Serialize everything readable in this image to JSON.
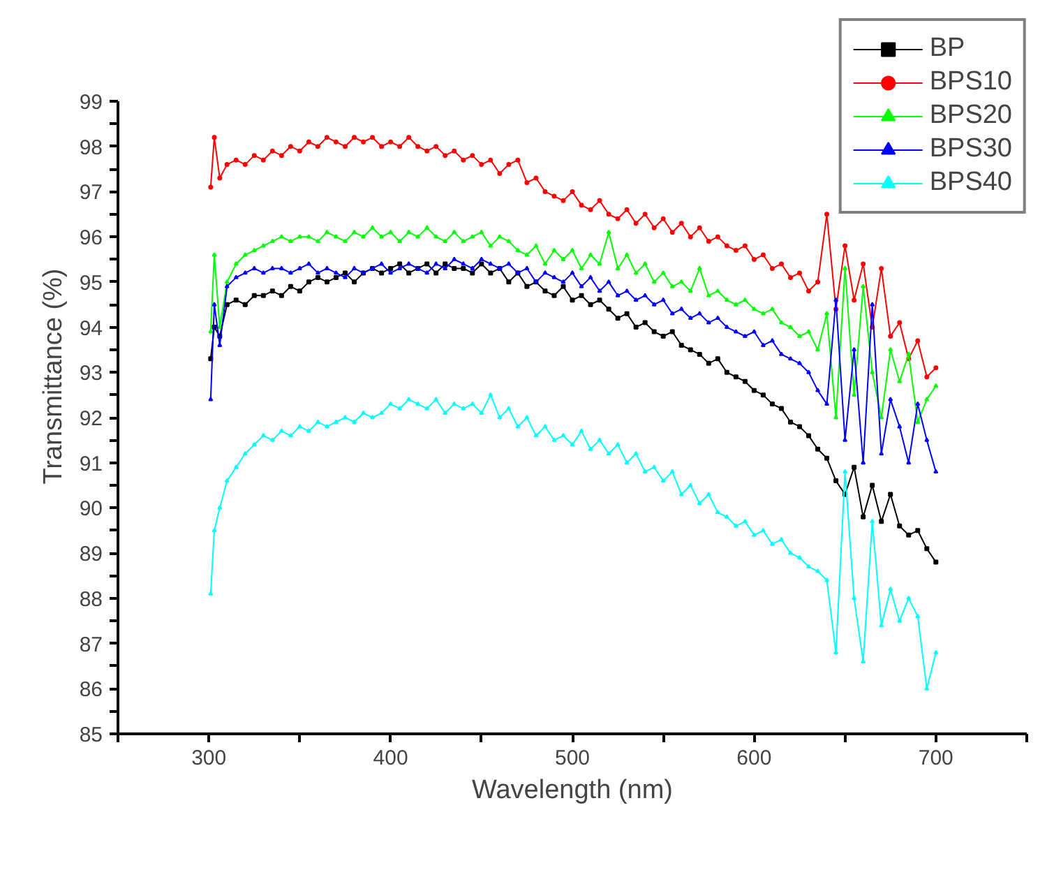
{
  "chart_data": {
    "type": "line",
    "xlabel": "Wavelength (nm)",
    "ylabel": "Transmittance (%)",
    "xlim": [
      250,
      750
    ],
    "ylim": [
      85,
      99
    ],
    "xticks": [
      {
        "value": 250,
        "label": null
      },
      300,
      {
        "value": 350,
        "label": null
      },
      400,
      {
        "value": 450,
        "label": null
      },
      500,
      {
        "value": 550,
        "label": null
      },
      600,
      {
        "value": 650,
        "label": null
      },
      700,
      {
        "value": 750,
        "label": null
      }
    ],
    "yticks": [
      85,
      {
        "value": 85.5,
        "label": null
      },
      86,
      {
        "value": 86.5,
        "label": null
      },
      87,
      {
        "value": 87.5,
        "label": null
      },
      88,
      {
        "value": 88.5,
        "label": null
      },
      89,
      {
        "value": 89.5,
        "label": null
      },
      90,
      {
        "value": 90.5,
        "label": null
      },
      91,
      {
        "value": 91.5,
        "label": null
      },
      92,
      {
        "value": 92.5,
        "label": null
      },
      93,
      {
        "value": 93.5,
        "label": null
      },
      94,
      {
        "value": 94.5,
        "label": null
      },
      95,
      {
        "value": 95.5,
        "label": null
      },
      96,
      {
        "value": 96.5,
        "label": null
      },
      97,
      {
        "value": 97.5,
        "label": null
      },
      98,
      {
        "value": 98.5,
        "label": null
      },
      99
    ],
    "legend": "top right",
    "line_style": "solid",
    "x": [
      301,
      303,
      306,
      310,
      315,
      320,
      325,
      330,
      335,
      340,
      345,
      350,
      355,
      360,
      365,
      370,
      375,
      380,
      385,
      390,
      395,
      400,
      405,
      410,
      415,
      420,
      425,
      430,
      435,
      440,
      445,
      450,
      455,
      460,
      465,
      470,
      475,
      480,
      485,
      490,
      495,
      500,
      505,
      510,
      515,
      520,
      525,
      530,
      535,
      540,
      545,
      550,
      555,
      560,
      565,
      570,
      575,
      580,
      585,
      590,
      595,
      600,
      605,
      610,
      615,
      620,
      625,
      630,
      635,
      640,
      645,
      650,
      655,
      660,
      665,
      670,
      675,
      680,
      685,
      690,
      695,
      700
    ],
    "series": [
      {
        "name": "BP",
        "color": "#000000",
        "marker": "square",
        "values": [
          93.3,
          94.0,
          93.8,
          94.5,
          94.6,
          94.5,
          94.7,
          94.7,
          94.8,
          94.7,
          94.9,
          94.8,
          95.0,
          95.1,
          95.0,
          95.1,
          95.2,
          95.0,
          95.2,
          95.3,
          95.2,
          95.3,
          95.4,
          95.2,
          95.3,
          95.4,
          95.2,
          95.4,
          95.3,
          95.3,
          95.2,
          95.4,
          95.2,
          95.3,
          95.0,
          95.2,
          94.9,
          95.0,
          94.8,
          94.7,
          94.9,
          94.6,
          94.7,
          94.5,
          94.6,
          94.4,
          94.2,
          94.3,
          94.0,
          94.1,
          93.9,
          93.8,
          93.9,
          93.6,
          93.5,
          93.4,
          93.2,
          93.3,
          93.0,
          92.9,
          92.8,
          92.6,
          92.5,
          92.3,
          92.2,
          91.9,
          91.8,
          91.6,
          91.3,
          91.1,
          90.6,
          90.3,
          90.9,
          89.8,
          90.5,
          89.7,
          90.3,
          89.6,
          89.4,
          89.5,
          89.1,
          88.8
        ]
      },
      {
        "name": "BPS10",
        "color": "#ff0000",
        "marker": "circle",
        "values": [
          97.1,
          98.2,
          97.3,
          97.6,
          97.7,
          97.6,
          97.8,
          97.7,
          97.9,
          97.8,
          98.0,
          97.9,
          98.1,
          98.0,
          98.2,
          98.1,
          98.0,
          98.2,
          98.1,
          98.2,
          98.0,
          98.1,
          98.0,
          98.2,
          98.0,
          97.9,
          98.0,
          97.8,
          97.9,
          97.7,
          97.8,
          97.6,
          97.7,
          97.4,
          97.6,
          97.7,
          97.2,
          97.3,
          97.0,
          96.9,
          96.8,
          97.0,
          96.7,
          96.6,
          96.8,
          96.5,
          96.4,
          96.6,
          96.3,
          96.5,
          96.2,
          96.4,
          96.1,
          96.3,
          96.0,
          96.2,
          95.9,
          96.0,
          95.8,
          95.7,
          95.8,
          95.5,
          95.6,
          95.3,
          95.4,
          95.1,
          95.2,
          94.8,
          95.0,
          96.5,
          94.4,
          95.8,
          94.6,
          95.4,
          94.0,
          95.3,
          93.8,
          94.1,
          93.3,
          93.7,
          92.9,
          93.1
        ]
      },
      {
        "name": "BPS20",
        "color": "#00ff00",
        "marker": "triangle",
        "values": [
          93.9,
          95.6,
          94.0,
          95.0,
          95.4,
          95.6,
          95.7,
          95.8,
          95.9,
          96.0,
          95.9,
          96.0,
          96.0,
          95.9,
          96.1,
          96.0,
          95.9,
          96.1,
          96.0,
          96.2,
          96.0,
          96.1,
          95.9,
          96.1,
          96.0,
          96.2,
          96.0,
          95.9,
          96.1,
          95.9,
          96.0,
          96.1,
          95.8,
          96.0,
          95.9,
          95.7,
          95.6,
          95.8,
          95.4,
          95.7,
          95.5,
          95.7,
          95.3,
          95.6,
          95.4,
          96.1,
          95.3,
          95.6,
          95.2,
          95.4,
          95.0,
          95.2,
          94.9,
          95.0,
          94.8,
          95.3,
          94.7,
          94.8,
          94.6,
          94.5,
          94.6,
          94.4,
          94.3,
          94.4,
          94.1,
          94.0,
          93.8,
          93.9,
          93.5,
          94.3,
          92.0,
          95.3,
          92.5,
          94.9,
          93.0,
          92.0,
          93.5,
          92.8,
          93.4,
          91.9,
          92.4,
          92.7
        ]
      },
      {
        "name": "BPS30",
        "color": "#0000ff",
        "marker": "triangle",
        "values": [
          92.4,
          94.5,
          93.6,
          94.9,
          95.1,
          95.2,
          95.3,
          95.2,
          95.3,
          95.3,
          95.2,
          95.3,
          95.4,
          95.2,
          95.3,
          95.2,
          95.1,
          95.3,
          95.2,
          95.3,
          95.4,
          95.2,
          95.3,
          95.4,
          95.3,
          95.2,
          95.4,
          95.3,
          95.5,
          95.4,
          95.3,
          95.5,
          95.4,
          95.3,
          95.4,
          95.2,
          95.3,
          95.0,
          95.2,
          95.1,
          95.0,
          95.2,
          94.9,
          95.1,
          94.8,
          95.0,
          94.7,
          94.8,
          94.6,
          94.7,
          94.5,
          94.6,
          94.3,
          94.4,
          94.2,
          94.3,
          94.1,
          94.2,
          94.0,
          93.9,
          93.8,
          93.9,
          93.6,
          93.7,
          93.4,
          93.3,
          93.2,
          93.0,
          92.6,
          92.3,
          94.6,
          91.5,
          93.5,
          91.0,
          94.5,
          91.2,
          92.4,
          91.8,
          91.0,
          92.3,
          91.5,
          90.8
        ]
      },
      {
        "name": "BPS40",
        "color": "#00ffff",
        "marker": "triangle",
        "values": [
          88.1,
          89.5,
          90.0,
          90.6,
          90.9,
          91.2,
          91.4,
          91.6,
          91.5,
          91.7,
          91.6,
          91.8,
          91.7,
          91.9,
          91.8,
          91.9,
          92.0,
          91.9,
          92.1,
          92.0,
          92.1,
          92.3,
          92.2,
          92.4,
          92.3,
          92.2,
          92.4,
          92.1,
          92.3,
          92.2,
          92.3,
          92.1,
          92.5,
          92.0,
          92.2,
          91.8,
          92.0,
          91.6,
          91.8,
          91.5,
          91.6,
          91.4,
          91.7,
          91.3,
          91.5,
          91.2,
          91.4,
          91.0,
          91.2,
          90.8,
          90.9,
          90.6,
          90.8,
          90.3,
          90.5,
          90.1,
          90.3,
          89.9,
          89.8,
          89.6,
          89.7,
          89.4,
          89.5,
          89.2,
          89.3,
          89.0,
          88.9,
          88.7,
          88.6,
          88.4,
          86.8,
          90.8,
          88.0,
          86.6,
          89.7,
          87.4,
          88.2,
          87.5,
          88.0,
          87.6,
          86.0,
          86.8
        ]
      }
    ]
  }
}
